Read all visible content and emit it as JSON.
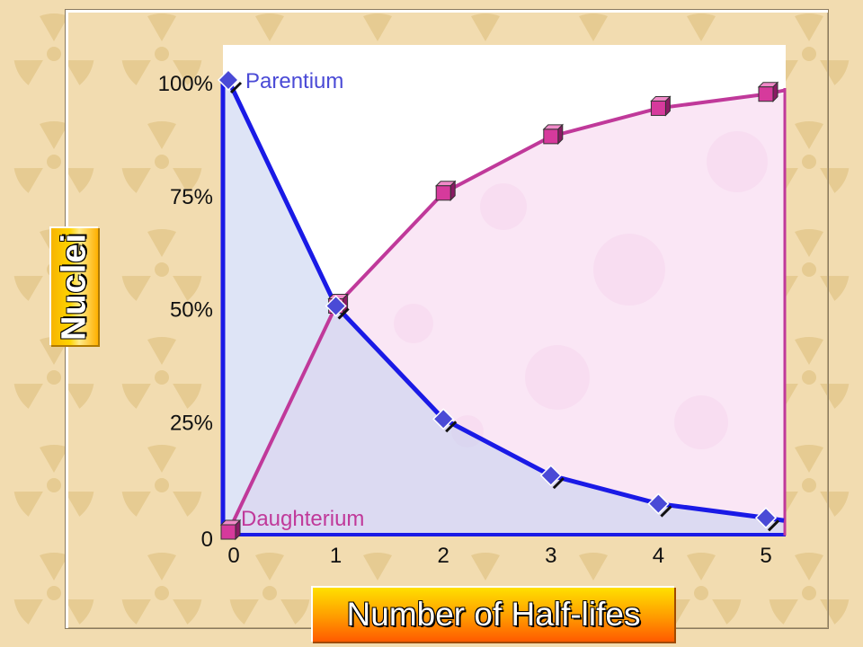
{
  "colors": {
    "background": "#f2dcb0",
    "plot_area": "#ffffff",
    "parentium": "#1a1ae6",
    "parentium_marker": "#4a4ad6",
    "parentium_fill": "#c8d2f0",
    "daughterium": "#c0399a",
    "daughterium_marker": "#d63a9c",
    "daughterium_fill": "#f6d2ec"
  },
  "chart_data": {
    "type": "line",
    "xlabel": "Number of Half-lifes",
    "ylabel": "Nuclei",
    "x": [
      0,
      1,
      2,
      3,
      4,
      5
    ],
    "x_tick_labels": [
      "0",
      "1",
      "2",
      "3",
      "4",
      "5"
    ],
    "y_tick_labels": [
      "0",
      "25%",
      "50%",
      "75%",
      "100%"
    ],
    "y_ticks": [
      0,
      25,
      50,
      75,
      100
    ],
    "xlim": [
      0,
      5
    ],
    "ylim": [
      0,
      100
    ],
    "grid": false,
    "series": [
      {
        "name": "Parentium",
        "values": [
          100,
          50,
          25,
          12.5,
          6.25,
          3.125
        ],
        "marker": "diamond"
      },
      {
        "name": "Daughterium",
        "values": [
          0,
          50,
          75,
          87.5,
          93.75,
          96.875
        ],
        "marker": "cube"
      }
    ]
  }
}
